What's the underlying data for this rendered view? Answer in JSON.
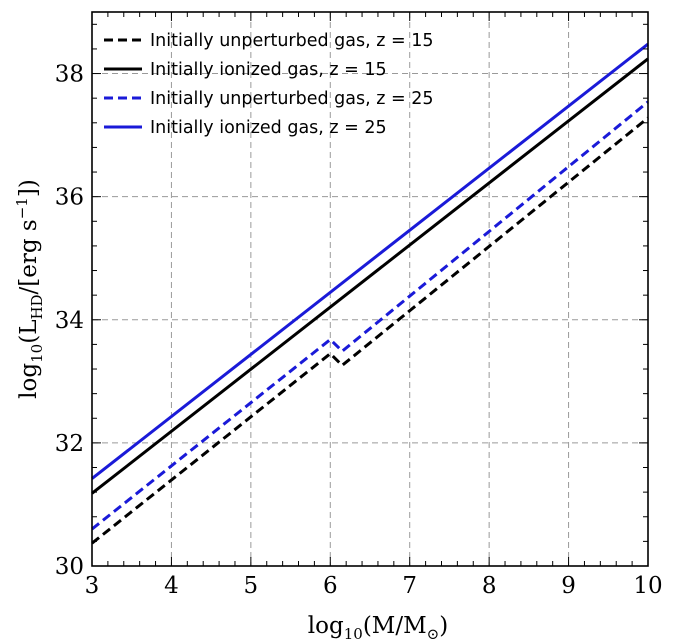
{
  "chart_data": {
    "type": "line",
    "xlim": [
      3,
      10
    ],
    "ylim": [
      30,
      39
    ],
    "xticks": [
      3,
      4,
      5,
      6,
      7,
      8,
      9,
      10
    ],
    "yticks": [
      30,
      32,
      34,
      36,
      38
    ],
    "xtick_labels": [
      "3",
      "4",
      "5",
      "6",
      "7",
      "8",
      "9",
      "10"
    ],
    "ytick_labels": [
      "30",
      "32",
      "34",
      "36",
      "38"
    ],
    "grid": true,
    "legend_position": "top-left",
    "x_label": {
      "prefix": "log",
      "sub1": "10",
      "mid": "(M/M",
      "sub2": "⊙",
      "suffix": ")"
    },
    "y_label": {
      "prefix": "log",
      "sub1": "10",
      "mid": "(L",
      "sub2": "HD",
      "mid2": "/[erg s",
      "sup": "−1",
      "suffix": "])"
    },
    "series": [
      {
        "name": "Initially unperturbed gas, z = 15",
        "color": "#000000",
        "dash": "dashed",
        "x": [
          3,
          6.0,
          6.15,
          10
        ],
        "y": [
          30.37,
          33.45,
          33.26,
          37.28
        ]
      },
      {
        "name": "Initially ionized gas, z = 15",
        "color": "#000000",
        "dash": "solid",
        "x": [
          3,
          10
        ],
        "y": [
          31.18,
          38.24
        ]
      },
      {
        "name": "Initially unperturbed gas, z = 25",
        "color": "#1a1ad8",
        "dash": "dashed",
        "x": [
          3,
          6.0,
          6.15,
          10
        ],
        "y": [
          30.6,
          33.68,
          33.49,
          37.54
        ]
      },
      {
        "name": "Initially ionized gas, z = 25",
        "color": "#1a1ad8",
        "dash": "solid",
        "x": [
          3,
          10
        ],
        "y": [
          31.42,
          38.48
        ]
      }
    ]
  }
}
